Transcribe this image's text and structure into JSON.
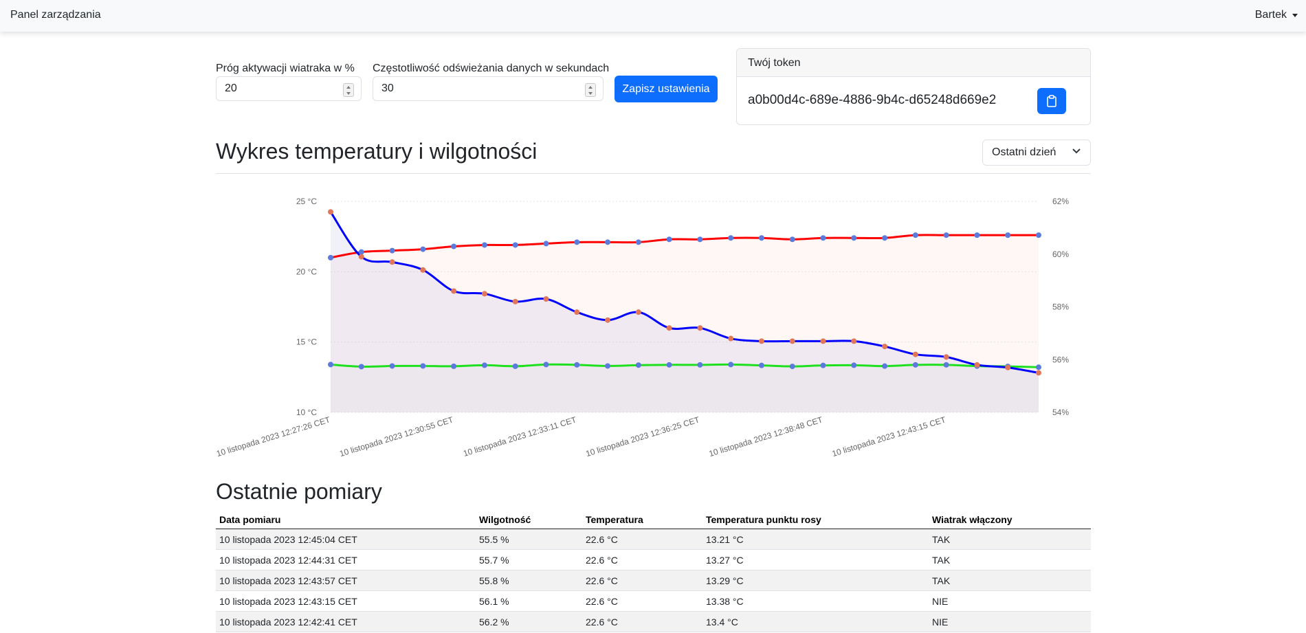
{
  "nav": {
    "brand": "Panel zarządzania",
    "user": "Bartek"
  },
  "settings": {
    "fan_threshold_label": "Próg aktywacji wiatraka w %",
    "fan_threshold_value": "20",
    "refresh_label": "Częstotliwość odświeżania danych w sekundach",
    "refresh_value": "30",
    "save_label": "Zapisz ustawienia"
  },
  "token": {
    "title": "Twój token",
    "value": "a0b00d4c-689e-4886-9b4c-d65248d669e2",
    "copy_icon": "clipboard-icon"
  },
  "chart_section": {
    "title": "Wykres temperatury i wilgotności",
    "range": "Ostatni dzień"
  },
  "chart_data": {
    "type": "line",
    "x": [
      "10 listopada 2023 12:27:26 CET",
      "",
      "",
      "",
      "10 listopada 2023 12:30:55 CET",
      "",
      "",
      "",
      "10 listopada 2023 12:33:11 CET",
      "",
      "",
      "",
      "10 listopada 2023 12:36:25 CET",
      "",
      "",
      "",
      "10 listopada 2023 12:38:48 CET",
      "",
      "",
      "",
      "10 listopada 2023 12:43:15 CET",
      "",
      "",
      ""
    ],
    "x_tick_labels": [
      "10 listopada 2023 12:27:26 CET",
      "10 listopada 2023 12:30:55 CET",
      "10 listopada 2023 12:33:11 CET",
      "10 listopada 2023 12:36:25 CET",
      "10 listopada 2023 12:38:48 CET",
      "10 listopada 2023 12:43:15 CET"
    ],
    "y_left": {
      "ticks": [
        "25 °C",
        "20 °C",
        "15 °C",
        "10 °C"
      ],
      "range": [
        10,
        25
      ]
    },
    "y_right": {
      "ticks": [
        "62%",
        "60%",
        "58%",
        "56%",
        "54%"
      ],
      "range": [
        54,
        62
      ]
    },
    "series": [
      {
        "axis": "left",
        "color": "#ff0000",
        "marker": "#5b7bdc",
        "values": [
          21.0,
          21.4,
          21.5,
          21.6,
          21.8,
          21.9,
          21.9,
          22.0,
          22.1,
          22.1,
          22.1,
          22.3,
          22.3,
          22.4,
          22.4,
          22.3,
          22.4,
          22.4,
          22.4,
          22.6,
          22.6,
          22.6,
          22.6,
          22.6
        ]
      },
      {
        "axis": "left",
        "color": "#1fe01f",
        "marker": "#5b7bdc",
        "values": [
          13.4,
          13.25,
          13.3,
          13.3,
          13.28,
          13.35,
          13.28,
          13.4,
          13.38,
          13.3,
          13.36,
          13.38,
          13.38,
          13.4,
          13.34,
          13.27,
          13.34,
          13.35,
          13.29,
          13.38,
          13.38,
          13.29,
          13.27,
          13.21
        ]
      },
      {
        "axis": "right",
        "color": "#0000ff",
        "marker": "#e0775a",
        "values": [
          61.6,
          59.9,
          59.7,
          59.4,
          58.6,
          58.5,
          58.2,
          58.3,
          57.8,
          57.5,
          57.8,
          57.2,
          57.2,
          56.8,
          56.7,
          56.7,
          56.7,
          56.7,
          56.5,
          56.2,
          56.1,
          55.8,
          55.7,
          55.5
        ]
      }
    ]
  },
  "measurements": {
    "title": "Ostatnie pomiary",
    "headers": [
      "Data pomiaru",
      "Wilgotność",
      "Temperatura",
      "Temperatura punktu rosy",
      "Wiatrak włączony"
    ],
    "rows": [
      [
        "10 listopada 2023 12:45:04 CET",
        "55.5 %",
        "22.6 °C",
        "13.21 °C",
        "TAK"
      ],
      [
        "10 listopada 2023 12:44:31 CET",
        "55.7 %",
        "22.6 °C",
        "13.27 °C",
        "TAK"
      ],
      [
        "10 listopada 2023 12:43:57 CET",
        "55.8 %",
        "22.6 °C",
        "13.29 °C",
        "TAK"
      ],
      [
        "10 listopada 2023 12:43:15 CET",
        "56.1 %",
        "22.6 °C",
        "13.38 °C",
        "NIE"
      ],
      [
        "10 listopada 2023 12:42:41 CET",
        "56.2 %",
        "22.6 °C",
        "13.4 °C",
        "NIE"
      ]
    ]
  }
}
